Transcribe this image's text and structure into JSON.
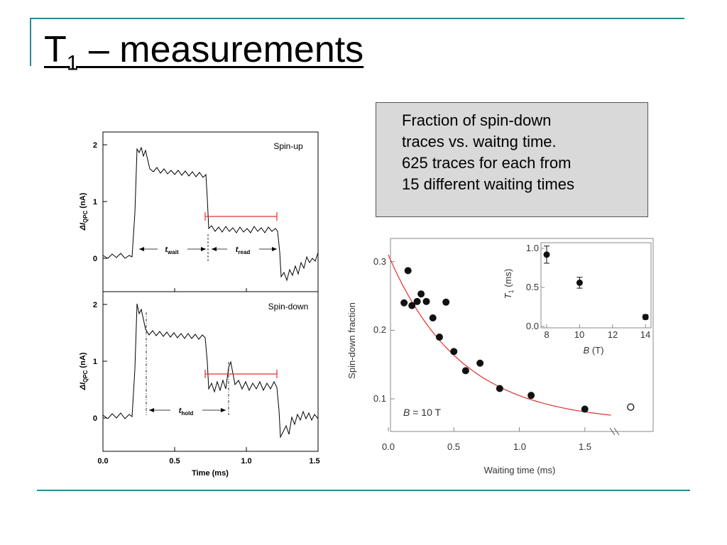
{
  "slide": {
    "title_main": "T",
    "title_sub": "1",
    "title_rest": " – measurements",
    "accent_color": "#2a8a96"
  },
  "caption": {
    "lines": [
      "Fraction of spin-down",
      "traces vs. waitng time.",
      "625 traces for each from",
      "15 different waiting times"
    ]
  },
  "left_figure": {
    "top_panel_label": "Spin-up",
    "bottom_panel_label": "Spin-down",
    "y_label_main": "ΔI",
    "y_label_sub": "QPC",
    "y_label_unit": " (nA)",
    "x_label": "Time (ms)",
    "x_ticks": [
      "0.0",
      "0.5",
      "1.0",
      "1.5"
    ],
    "y_ticks": [
      "0",
      "1",
      "2"
    ],
    "t_wait_main": "t",
    "t_wait_sub": "wait",
    "t_read_main": "t",
    "t_read_sub": "read",
    "t_hold_main": "t",
    "t_hold_sub": "hold"
  },
  "chart_data": [
    {
      "type": "scatter",
      "title": "",
      "xlabel": "Waiting time (ms)",
      "ylabel": "Spin-down fraction",
      "xlim": [
        0,
        1.9
      ],
      "ylim": [
        0.05,
        0.33
      ],
      "x_ticks": [
        "0.0",
        "0.5",
        "1.0",
        "1.5"
      ],
      "y_ticks": [
        "0.1",
        "0.2",
        "0.3"
      ],
      "annotation_main": "B",
      "annotation_rest": " = 10 T",
      "fit_color": "#e03030",
      "fit": {
        "a": 0.31,
        "tau": 0.55,
        "c": 0.065
      },
      "series": [
        {
          "values": [
            [
              0.12,
              0.24
            ],
            [
              0.15,
              0.287
            ],
            [
              0.18,
              0.236
            ],
            [
              0.22,
              0.242
            ],
            [
              0.25,
              0.253
            ],
            [
              0.29,
              0.242
            ],
            [
              0.34,
              0.218
            ],
            [
              0.39,
              0.19
            ],
            [
              0.44,
              0.241
            ],
            [
              0.5,
              0.169
            ],
            [
              0.59,
              0.141
            ],
            [
              0.7,
              0.152
            ],
            [
              0.85,
              0.115
            ],
            [
              1.09,
              0.105
            ],
            [
              1.5,
              0.085
            ]
          ]
        }
      ],
      "open_points": [
        [
          1.85,
          0.088
        ]
      ]
    },
    {
      "type": "scatter",
      "title": "",
      "xlabel_main": "B",
      "xlabel_rest": " (T)",
      "ylabel_main": "T",
      "ylabel_sub": "1",
      "ylabel_rest": " (ms)",
      "xlim": [
        7.7,
        14.3
      ],
      "ylim": [
        0,
        1.1
      ],
      "x_ticks": [
        "8",
        "10",
        "12",
        "14"
      ],
      "y_ticks": [
        "0.0",
        "0.5",
        "1.0"
      ],
      "series": [
        {
          "values": [
            [
              8,
              0.92
            ],
            [
              10,
              0.56
            ],
            [
              14,
              0.12
            ]
          ],
          "errors": [
            0.11,
            0.07,
            0.03
          ]
        }
      ]
    }
  ]
}
